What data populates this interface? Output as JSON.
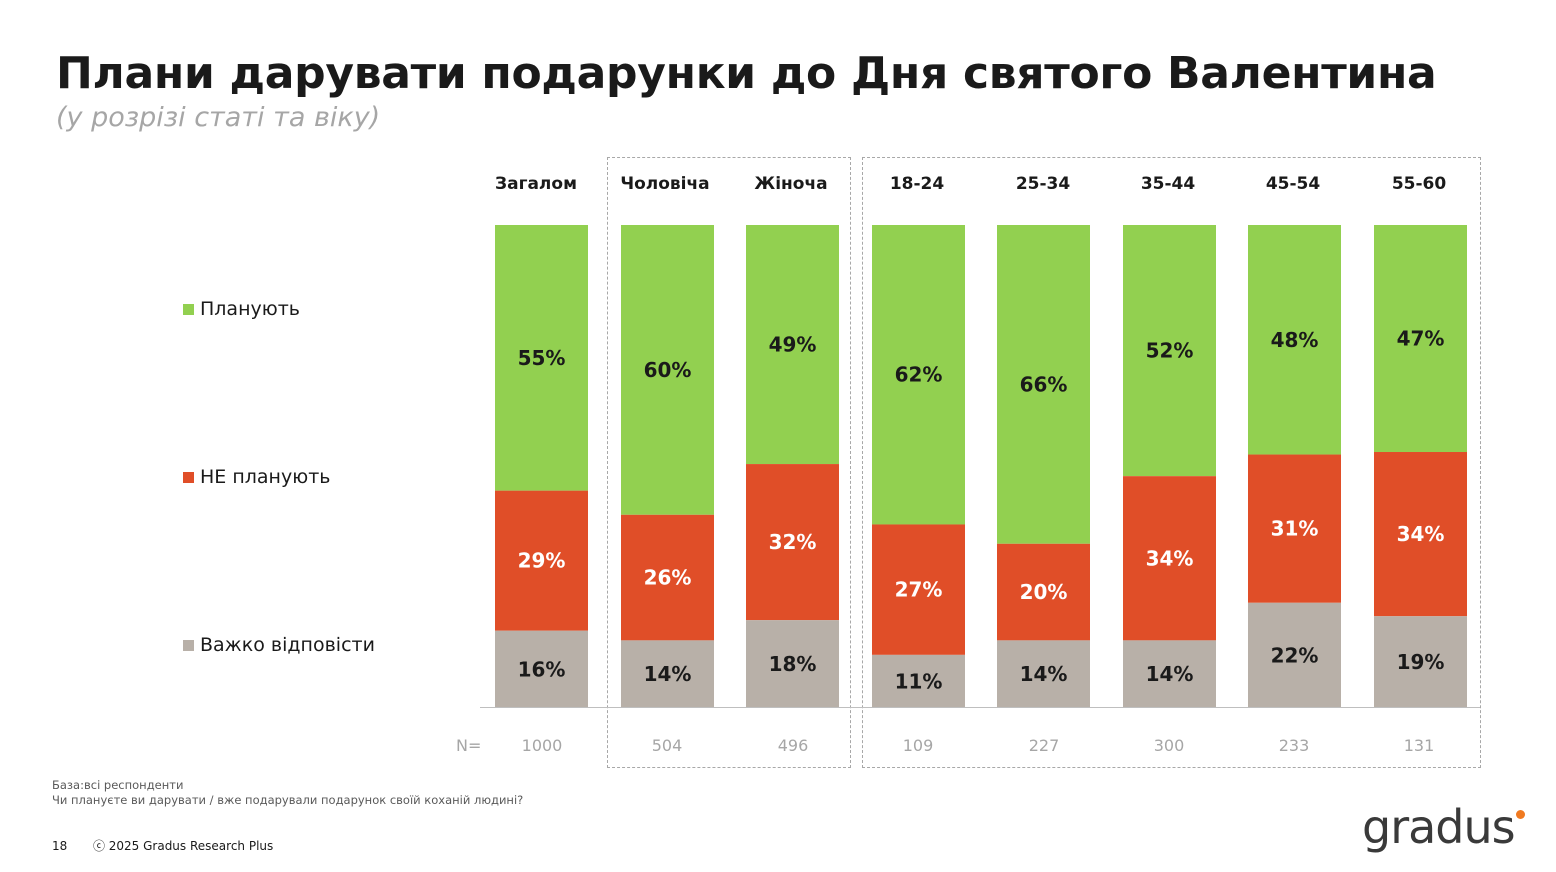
{
  "page": {
    "title": "Плани дарувати подарунки до Дня святого Валентина",
    "subtitle": "(у розрізі статі та віку)",
    "footnote_base": "База:всі респонденти",
    "footnote_question": "Чи плануєте ви дарувати / вже подарували подарунок своїй коханій людині?",
    "page_number": "18",
    "copyright": "ⓒ 2025 Gradus Research Plus",
    "logo_text": "gradus",
    "n_label": "N="
  },
  "colors": {
    "plan": "#92d050",
    "not_plan": "#e04e28",
    "hard": "#b8b0a8",
    "dot": "#f07a21"
  },
  "chart_data": {
    "type": "bar",
    "stacked": true,
    "normalized": true,
    "categories": [
      "Загалом",
      "Чоловіча",
      "Жіноча",
      "18-24",
      "25-34",
      "35-44",
      "45-54",
      "55-60"
    ],
    "series": [
      {
        "name": "Планують",
        "values": [
          55,
          60,
          49,
          62,
          66,
          52,
          48,
          47
        ],
        "color": "#92d050",
        "label_color": "#1a1a1a"
      },
      {
        "name": "НЕ планують",
        "values": [
          29,
          26,
          32,
          27,
          20,
          34,
          31,
          34
        ],
        "color": "#e04e28",
        "label_color": "#ffffff"
      },
      {
        "name": "Важко відповісти",
        "values": [
          16,
          14,
          18,
          11,
          14,
          14,
          22,
          19
        ],
        "color": "#b8b0a8",
        "label_color": "#1a1a1a"
      }
    ],
    "n": [
      "1000",
      "504",
      "496",
      "109",
      "227",
      "300",
      "233",
      "131"
    ],
    "unit": "%",
    "legend_placement": "left",
    "grid": false
  }
}
